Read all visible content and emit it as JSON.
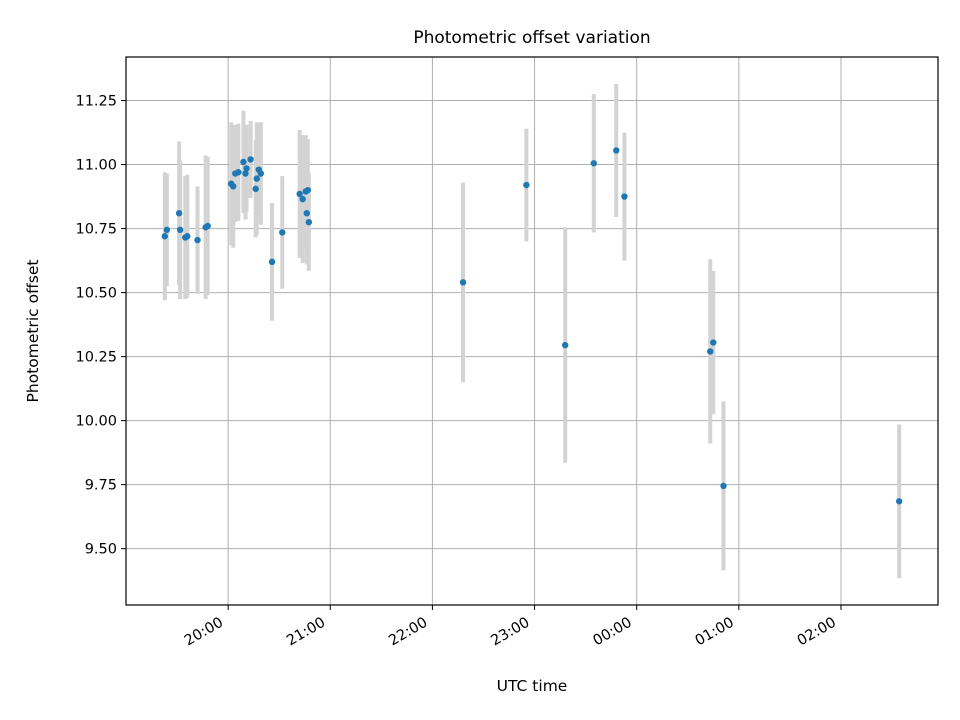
{
  "chart_data": {
    "type": "scatter",
    "title": "Photometric offset variation",
    "xlabel": "UTC time",
    "ylabel": "Photometric offset",
    "grid": true,
    "xlim_hours": [
      19.0,
      26.95
    ],
    "ylim": [
      9.28,
      11.42
    ],
    "x_ticks": [
      {
        "hour": 20,
        "label": "20:00"
      },
      {
        "hour": 21,
        "label": "21:00"
      },
      {
        "hour": 22,
        "label": "22:00"
      },
      {
        "hour": 23,
        "label": "23:00"
      },
      {
        "hour": 24,
        "label": "00:00"
      },
      {
        "hour": 25,
        "label": "01:00"
      },
      {
        "hour": 26,
        "label": "02:00"
      }
    ],
    "y_ticks": [
      {
        "value": 9.5,
        "label": "9.50"
      },
      {
        "value": 9.75,
        "label": "9.75"
      },
      {
        "value": 10.0,
        "label": "10.00"
      },
      {
        "value": 10.25,
        "label": "10.25"
      },
      {
        "value": 10.5,
        "label": "10.50"
      },
      {
        "value": 10.75,
        "label": "10.75"
      },
      {
        "value": 11.0,
        "label": "11.00"
      },
      {
        "value": 11.25,
        "label": "11.25"
      }
    ],
    "marker_color": "#1f77b4",
    "errorbar_color": "#d3d3d3",
    "points": [
      {
        "t": 19.38,
        "y": 10.72,
        "err": 0.25
      },
      {
        "t": 19.4,
        "y": 10.745,
        "err": 0.22
      },
      {
        "t": 19.52,
        "y": 10.81,
        "err": 0.28
      },
      {
        "t": 19.53,
        "y": 10.745,
        "err": 0.27
      },
      {
        "t": 19.58,
        "y": 10.715,
        "err": 0.24
      },
      {
        "t": 19.6,
        "y": 10.72,
        "err": 0.24
      },
      {
        "t": 19.7,
        "y": 10.705,
        "err": 0.21
      },
      {
        "t": 19.78,
        "y": 10.755,
        "err": 0.28
      },
      {
        "t": 19.8,
        "y": 10.76,
        "err": 0.27
      },
      {
        "t": 20.03,
        "y": 10.925,
        "err": 0.24
      },
      {
        "t": 20.05,
        "y": 10.915,
        "err": 0.24
      },
      {
        "t": 20.07,
        "y": 10.965,
        "err": 0.19
      },
      {
        "t": 20.1,
        "y": 10.97,
        "err": 0.19
      },
      {
        "t": 20.15,
        "y": 11.01,
        "err": 0.2
      },
      {
        "t": 20.17,
        "y": 10.965,
        "err": 0.18
      },
      {
        "t": 20.18,
        "y": 10.985,
        "err": 0.17
      },
      {
        "t": 20.22,
        "y": 11.02,
        "err": 0.15
      },
      {
        "t": 20.27,
        "y": 10.905,
        "err": 0.19
      },
      {
        "t": 20.28,
        "y": 10.945,
        "err": 0.22
      },
      {
        "t": 20.3,
        "y": 10.98,
        "err": 0.18
      },
      {
        "t": 20.32,
        "y": 10.965,
        "err": 0.2
      },
      {
        "t": 20.43,
        "y": 10.62,
        "err": 0.23
      },
      {
        "t": 20.53,
        "y": 10.735,
        "err": 0.22
      },
      {
        "t": 20.7,
        "y": 10.885,
        "err": 0.25
      },
      {
        "t": 20.73,
        "y": 10.865,
        "err": 0.25
      },
      {
        "t": 20.76,
        "y": 10.895,
        "err": 0.22
      },
      {
        "t": 20.77,
        "y": 10.81,
        "err": 0.2
      },
      {
        "t": 20.78,
        "y": 10.9,
        "err": 0.2
      },
      {
        "t": 20.79,
        "y": 10.775,
        "err": 0.19
      },
      {
        "t": 22.3,
        "y": 10.54,
        "err": 0.39
      },
      {
        "t": 22.92,
        "y": 10.92,
        "err": 0.22
      },
      {
        "t": 23.3,
        "y": 10.295,
        "err": 0.46
      },
      {
        "t": 23.58,
        "y": 11.005,
        "err": 0.27
      },
      {
        "t": 23.8,
        "y": 11.055,
        "err": 0.26
      },
      {
        "t": 23.88,
        "y": 10.875,
        "err": 0.25
      },
      {
        "t": 24.72,
        "y": 10.27,
        "err": 0.36
      },
      {
        "t": 24.75,
        "y": 10.305,
        "err": 0.28
      },
      {
        "t": 24.85,
        "y": 9.745,
        "err": 0.33
      },
      {
        "t": 26.57,
        "y": 9.685,
        "err": 0.3
      }
    ]
  }
}
